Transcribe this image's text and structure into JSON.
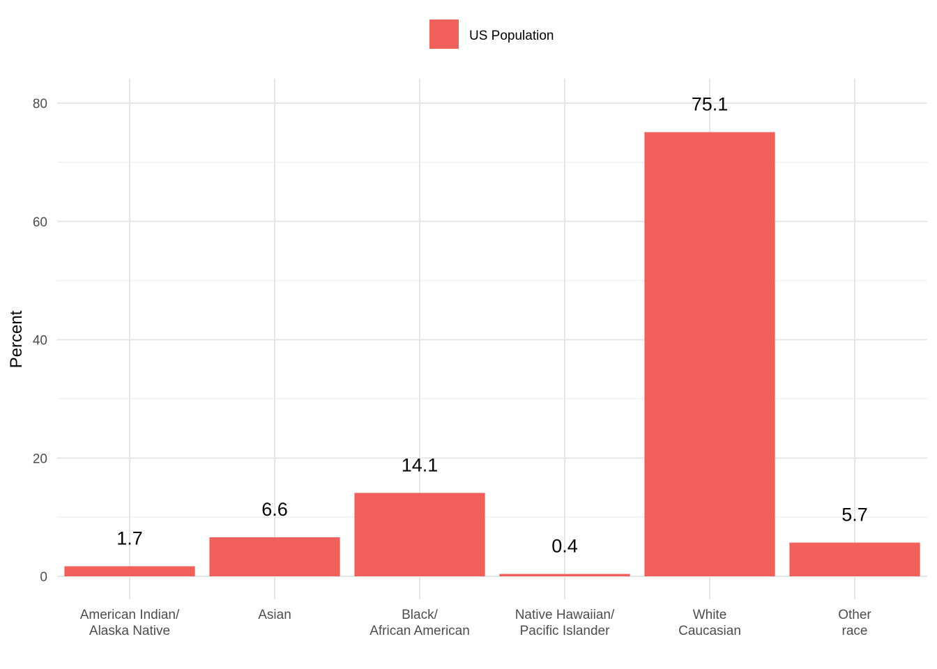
{
  "chart_data": {
    "type": "bar",
    "categories": [
      [
        "American Indian/",
        "Alaska Native"
      ],
      [
        "Asian"
      ],
      [
        "Black/",
        "African American"
      ],
      [
        "Native Hawaiian/",
        "Pacific Islander"
      ],
      [
        "White",
        "Caucasian"
      ],
      [
        "Other",
        "race"
      ]
    ],
    "series": [
      {
        "name": "US Population",
        "values": [
          1.7,
          6.6,
          14.1,
          0.4,
          75.1,
          5.7
        ],
        "color": "#F2605C"
      }
    ],
    "data_labels": [
      "1.7",
      "6.6",
      "14.1",
      "0.4",
      "75.1",
      "5.7"
    ],
    "ylabel": "Percent",
    "xlabel": "",
    "ylim": [
      0,
      84
    ],
    "yticks": [
      0,
      20,
      40,
      60,
      80
    ],
    "grid": true,
    "legend_position": "top"
  }
}
